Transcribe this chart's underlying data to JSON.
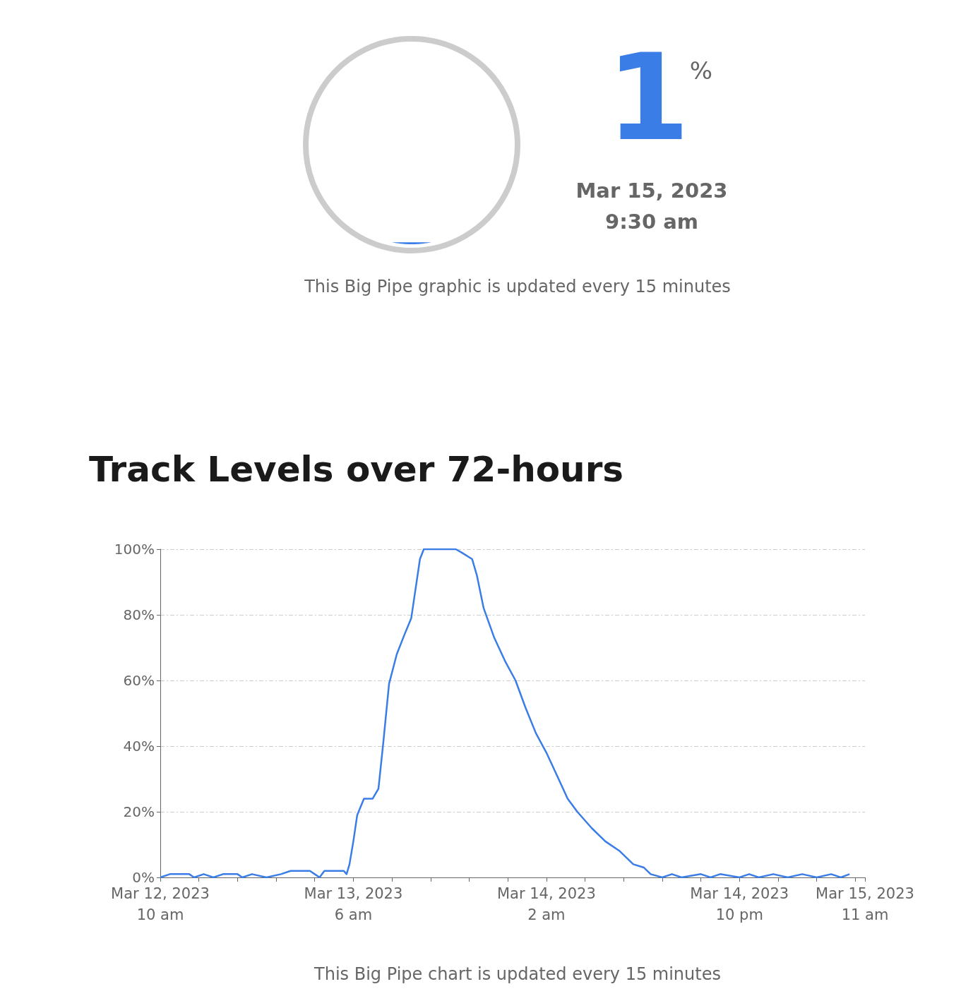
{
  "chart_data": [
    {
      "type": "other",
      "values": [
        1
      ],
      "value_labels": [
        "1"
      ],
      "color": "#3b7de6",
      "annotations": [
        "%",
        "Mar 15, 2023",
        "9:30 am",
        "This Big Pipe graphic is updated every 15 minutes"
      ]
    },
    {
      "type": "line",
      "title": "Track Levels over 72-hours",
      "annotations": [
        "This Big Pipe chart is updated every 15 minutes"
      ],
      "color": "#3b7de6",
      "grid": "y",
      "x": [
        "2023-03-12T10:00",
        "2023-03-12T11:00",
        "2023-03-12T13:00",
        "2023-03-12T13:30",
        "2023-03-12T14:30",
        "2023-03-12T15:30",
        "2023-03-12T16:30",
        "2023-03-12T18:00",
        "2023-03-12T18:30",
        "2023-03-12T19:30",
        "2023-03-12T21:00",
        "2023-03-12T22:30",
        "2023-03-12T23:30",
        "2023-03-13T01:30",
        "2023-03-13T02:00",
        "2023-03-13T02:30",
        "2023-03-13T03:00",
        "2023-03-13T05:00",
        "2023-03-13T05:18",
        "2023-03-13T05:36",
        "2023-03-13T06:00",
        "2023-03-13T06:24",
        "2023-03-13T07:06",
        "2023-03-13T08:00",
        "2023-03-13T08:36",
        "2023-03-13T09:06",
        "2023-03-13T09:42",
        "2023-03-13T10:30",
        "2023-03-13T11:18",
        "2023-03-13T12:00",
        "2023-03-13T12:30",
        "2023-03-13T12:54",
        "2023-03-13T13:18",
        "2023-03-13T16:36",
        "2023-03-13T17:12",
        "2023-03-13T18:18",
        "2023-03-13T18:48",
        "2023-03-13T19:30",
        "2023-03-13T20:36",
        "2023-03-13T21:42",
        "2023-03-13T22:48",
        "2023-03-13T23:48",
        "2023-03-14T00:54",
        "2023-03-14T02:00",
        "2023-03-14T03:06",
        "2023-03-14T04:12",
        "2023-03-14T05:12",
        "2023-03-14T06:42",
        "2023-03-14T08:06",
        "2023-03-14T09:36",
        "2023-03-14T11:00",
        "2023-03-14T12:06",
        "2023-03-14T12:48",
        "2023-03-14T14:00",
        "2023-03-14T15:00",
        "2023-03-14T16:00",
        "2023-03-14T18:00",
        "2023-03-14T19:00",
        "2023-03-14T20:00",
        "2023-03-14T22:00",
        "2023-03-14T23:00",
        "2023-03-15T00:00",
        "2023-03-15T01:30",
        "2023-03-15T03:00",
        "2023-03-15T04:30",
        "2023-03-15T06:00",
        "2023-03-15T07:30",
        "2023-03-15T08:30",
        "2023-03-15T09:24"
      ],
      "values": [
        0,
        1,
        1,
        0,
        1,
        0,
        1,
        1,
        0,
        1,
        0,
        1,
        2,
        2,
        1,
        0,
        2,
        2,
        1,
        4,
        11,
        19,
        24,
        24,
        27,
        41,
        59,
        68,
        74,
        79,
        89,
        97,
        100,
        100,
        99,
        97,
        92,
        82,
        73,
        66,
        60,
        52,
        44,
        38,
        31,
        24,
        20,
        15,
        11,
        8,
        4,
        3,
        1,
        0,
        1,
        0,
        1,
        0,
        1,
        0,
        1,
        0,
        1,
        0,
        1,
        0,
        1,
        0,
        1
      ],
      "xlim": [
        "2023-03-12T10:00",
        "2023-03-15T11:00"
      ],
      "xticks": [
        {
          "value": "2023-03-12T10:00",
          "label": "Mar 12, 2023\n10 am"
        },
        {
          "value": "2023-03-12T14:00",
          "label": null
        },
        {
          "value": "2023-03-12T18:00",
          "label": null
        },
        {
          "value": "2023-03-12T22:00",
          "label": null
        },
        {
          "value": "2023-03-13T02:00",
          "label": null
        },
        {
          "value": "2023-03-13T06:00",
          "label": "Mar 13, 2023\n6 am"
        },
        {
          "value": "2023-03-13T10:00",
          "label": null
        },
        {
          "value": "2023-03-13T14:00",
          "label": null
        },
        {
          "value": "2023-03-13T18:00",
          "label": null
        },
        {
          "value": "2023-03-13T22:00",
          "label": null
        },
        {
          "value": "2023-03-14T02:00",
          "label": "Mar 14, 2023\n2 am"
        },
        {
          "value": "2023-03-14T06:00",
          "label": null
        },
        {
          "value": "2023-03-14T10:00",
          "label": null
        },
        {
          "value": "2023-03-14T14:00",
          "label": null
        },
        {
          "value": "2023-03-14T18:00",
          "label": null
        },
        {
          "value": "2023-03-14T22:00",
          "label": "Mar 14, 2023\n10 pm"
        },
        {
          "value": "2023-03-15T02:00",
          "label": null
        },
        {
          "value": "2023-03-15T06:00",
          "label": null
        },
        {
          "value": "2023-03-15T10:00",
          "label": null
        },
        {
          "value": "2023-03-15T11:00",
          "label": "Mar 15, 2023\n11 am"
        }
      ],
      "ylim": [
        0,
        100
      ],
      "yticks": [
        {
          "value": 0,
          "label": "0%"
        },
        {
          "value": 20,
          "label": "20%"
        },
        {
          "value": 40,
          "label": "40%"
        },
        {
          "value": 60,
          "label": "60%"
        },
        {
          "value": 80,
          "label": "80%"
        },
        {
          "value": 100,
          "label": "100%"
        }
      ]
    }
  ]
}
